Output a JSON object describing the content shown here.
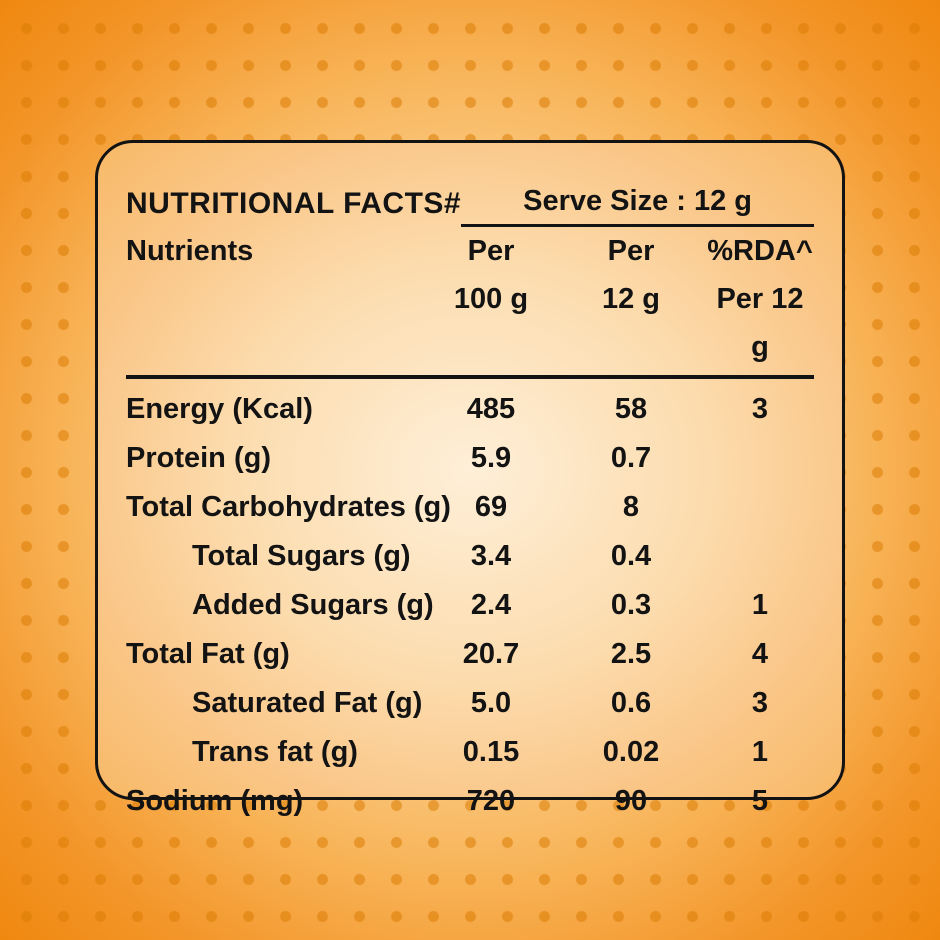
{
  "label": {
    "title": "NUTRITIONAL FACTS#",
    "serve_size": "Serve Size : 12 g",
    "header": {
      "nutrients": "Nutrients",
      "col2_line1": "Per",
      "col2_line2": "100 g",
      "col3_line1": "Per",
      "col3_line2": "12 g",
      "col4_line1": "%RDA^",
      "col4_line2": "Per 12 g"
    },
    "rows": [
      {
        "name": "Energy (Kcal)",
        "per100": "485",
        "per12": "58",
        "rda": "3"
      },
      {
        "name": "Protein (g)",
        "per100": "5.9",
        "per12": "0.7",
        "rda": ""
      },
      {
        "name": "Total Carbohydrates (g)",
        "per100": "69",
        "per12": "8",
        "rda": ""
      },
      {
        "name": "Total Sugars (g)",
        "per100": "3.4",
        "per12": "0.4",
        "rda": ""
      },
      {
        "name": "Added Sugars (g)",
        "per100": "2.4",
        "per12": "0.3",
        "rda": "1"
      },
      {
        "name": "Total Fat (g)",
        "per100": "20.7",
        "per12": "2.5",
        "rda": "4"
      },
      {
        "name": "Saturated Fat (g)",
        "per100": "5.0",
        "per12": "0.6",
        "rda": "3"
      },
      {
        "name": "Trans fat (g)",
        "per100": "0.15",
        "per12": "0.02",
        "rda": "1"
      },
      {
        "name": "Sodium (mg)",
        "per100": "720",
        "per12": "90",
        "rda": "5"
      }
    ],
    "colors": {
      "background_edge": "#ef880f",
      "background_center": "#fdeccd",
      "dot": "#db7c04",
      "text": "#131313"
    }
  }
}
